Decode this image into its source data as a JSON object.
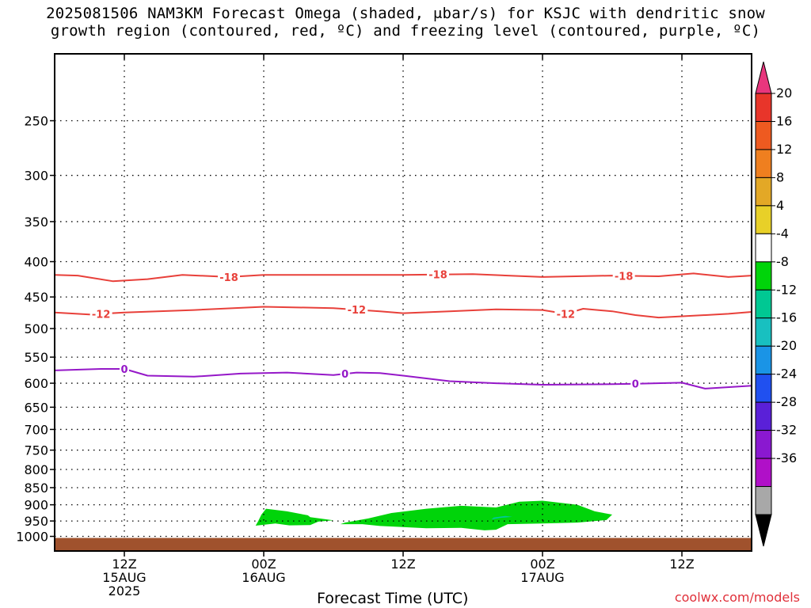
{
  "title": {
    "line1": "2025081506 NAM3KM Forecast Omega (shaded, μbar/s) for KSJC with dendritic snow",
    "line2": "growth region (contoured, red, ºC) and freezing level (contoured, purple, ºC)"
  },
  "credit": "coolwx.com/models",
  "chart_data": {
    "type": "heatmap",
    "xlabel": "Forecast Time (UTC)",
    "ylabel": "",
    "x_range_hours": [
      0,
      60
    ],
    "y_axis_pressure_hPa": {
      "log_scale": true,
      "range": [
        1050,
        200
      ],
      "ticks": [
        250,
        300,
        350,
        400,
        450,
        500,
        550,
        600,
        650,
        700,
        750,
        800,
        850,
        900,
        950,
        1000
      ]
    },
    "grid": "dotted",
    "x_ticks": [
      {
        "hour": 6,
        "line1": "12Z",
        "line2": "15AUG",
        "line3": "2025"
      },
      {
        "hour": 18,
        "line1": "00Z",
        "line2": "16AUG",
        "line3": ""
      },
      {
        "hour": 30,
        "line1": "12Z",
        "line2": "",
        "line3": ""
      },
      {
        "hour": 42,
        "line1": "00Z",
        "line2": "17AUG",
        "line3": ""
      },
      {
        "hour": 54,
        "line1": "12Z",
        "line2": "",
        "line3": ""
      }
    ],
    "contours": [
      {
        "name": "-18",
        "color": "#e8403a",
        "label": "-18",
        "points": [
          [
            0,
            418
          ],
          [
            2,
            419
          ],
          [
            5,
            427
          ],
          [
            8,
            424
          ],
          [
            11,
            418
          ],
          [
            15,
            421
          ],
          [
            18,
            418
          ],
          [
            24,
            418
          ],
          [
            30,
            418
          ],
          [
            36,
            417
          ],
          [
            42,
            421
          ],
          [
            48,
            419
          ],
          [
            52,
            420
          ],
          [
            55,
            416
          ],
          [
            58,
            421
          ],
          [
            60,
            419
          ]
        ],
        "label_hours": [
          15,
          33,
          49
        ]
      },
      {
        "name": "-12",
        "color": "#e8403a",
        "label": "-12",
        "points": [
          [
            0,
            474
          ],
          [
            3,
            477
          ],
          [
            6,
            474
          ],
          [
            12,
            470
          ],
          [
            18,
            465
          ],
          [
            24,
            467
          ],
          [
            28,
            472
          ],
          [
            30,
            475
          ],
          [
            34,
            472
          ],
          [
            38,
            469
          ],
          [
            42,
            470
          ],
          [
            44,
            476
          ],
          [
            45.5,
            468
          ],
          [
            48,
            472
          ],
          [
            50,
            478
          ],
          [
            52,
            482
          ],
          [
            55,
            479
          ],
          [
            58,
            476
          ],
          [
            60,
            473
          ]
        ],
        "label_hours": [
          4,
          26,
          44
        ]
      },
      {
        "name": "0",
        "color": "#9518c8",
        "label": "0",
        "points": [
          [
            0,
            575
          ],
          [
            4,
            572
          ],
          [
            6,
            572
          ],
          [
            8,
            585
          ],
          [
            12,
            587
          ],
          [
            16,
            581
          ],
          [
            20,
            579
          ],
          [
            24,
            584
          ],
          [
            26,
            579
          ],
          [
            28,
            580
          ],
          [
            30,
            585
          ],
          [
            34,
            596
          ],
          [
            38,
            600
          ],
          [
            42,
            603
          ],
          [
            48,
            602
          ],
          [
            50,
            601
          ],
          [
            54,
            599
          ],
          [
            56,
            611
          ],
          [
            60,
            605
          ]
        ],
        "label_hours": [
          6,
          25,
          50
        ]
      }
    ],
    "shaded_regions": [
      {
        "color": "#00d40a",
        "name": "-4 to -8",
        "points": [
          [
            17.3,
            965
          ],
          [
            19,
            958
          ],
          [
            20.2,
            964
          ],
          [
            22,
            963
          ],
          [
            22.7,
            952
          ],
          [
            24,
            948
          ],
          [
            22,
            938
          ],
          [
            21.8,
            932
          ],
          [
            20,
            920
          ],
          [
            18.2,
            912
          ],
          [
            17.8,
            930
          ],
          [
            17.5,
            952
          ]
        ]
      },
      {
        "color": "#00d40a",
        "name": "-4 to -8",
        "points": [
          [
            24.6,
            960
          ],
          [
            26.5,
            960
          ],
          [
            28,
            966
          ],
          [
            32,
            973
          ],
          [
            35,
            972
          ],
          [
            37,
            980
          ],
          [
            38,
            978
          ],
          [
            39,
            960
          ],
          [
            42,
            958
          ],
          [
            45,
            955
          ],
          [
            47.5,
            947
          ],
          [
            48,
            930
          ],
          [
            46.5,
            920
          ],
          [
            45,
            900
          ],
          [
            42,
            888
          ],
          [
            40,
            891
          ],
          [
            38,
            908
          ],
          [
            35,
            903
          ],
          [
            32,
            912
          ],
          [
            29,
            925
          ],
          [
            27,
            942
          ],
          [
            25,
            955
          ]
        ]
      },
      {
        "color": "#00c8a0",
        "name": "-8 to -12",
        "points": [
          [
            37.6,
            945
          ],
          [
            38.4,
            940
          ],
          [
            39.4,
            937
          ],
          [
            38.8,
            934
          ],
          [
            37.8,
            939
          ]
        ]
      }
    ],
    "ground_fill_color": "#a0522d",
    "colorbar": {
      "labels": [
        "20",
        "16",
        "12",
        "8",
        "4",
        "-4",
        "-8",
        "-12",
        "-16",
        "-20",
        "-24",
        "-28",
        "-32",
        "-36"
      ],
      "colors": [
        "#e8367d",
        "#e8352a",
        "#ee5a20",
        "#ef7f1f",
        "#e3a826",
        "#e8d028",
        "#ffffff",
        "#00d40a",
        "#00c893",
        "#18c0c0",
        "#1a94e6",
        "#2050f0",
        "#5a20d8",
        "#8a18d0",
        "#b010c8",
        "#a8a8a8",
        "#000000"
      ]
    }
  }
}
